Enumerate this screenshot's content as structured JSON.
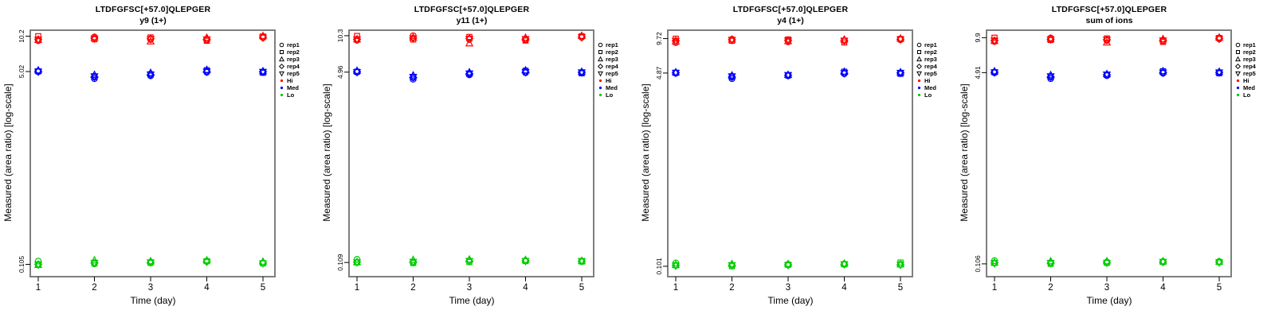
{
  "figure": {
    "background": "#FFFFFF",
    "frame_color": "#7F7F7F",
    "tick_color": "#000000",
    "text_color": "#000000"
  },
  "legend": {
    "reps": [
      {
        "label": "rep1",
        "marker": "circle"
      },
      {
        "label": "rep2",
        "marker": "square"
      },
      {
        "label": "rep3",
        "marker": "triangle-up"
      },
      {
        "label": "rep4",
        "marker": "diamond"
      },
      {
        "label": "rep5",
        "marker": "triangle-down"
      }
    ],
    "levels": [
      {
        "label": "Hi",
        "color": "#FF0000"
      },
      {
        "label": "Med",
        "color": "#0000FF"
      },
      {
        "label": "Lo",
        "color": "#00CD00"
      }
    ]
  },
  "chart_data": [
    {
      "type": "scatter",
      "title": "LTDFGFSC[+57.0]QLEPGER",
      "subtitle": "y9 (1+)",
      "xlabel": "Time (day)",
      "ylabel": "Measured (area ratio) [log-scale]",
      "x_days": [
        1,
        2,
        3,
        4,
        5
      ],
      "y_scale": "log",
      "ylim": [
        0.082,
        11.5
      ],
      "yticks": [
        "10.2",
        "5.02",
        "0.105"
      ],
      "series": [
        {
          "name": "Hi",
          "color": "#FF0000",
          "values_by_rep": [
            [
              9.3,
              10.05,
              9.55,
              9.45,
              9.9
            ],
            [
              10.2,
              9.6,
              9.95,
              9.3,
              10.15
            ],
            [
              9.5,
              9.9,
              9.2,
              9.9,
              10.25
            ],
            [
              9.55,
              9.8,
              9.7,
              9.6,
              10.0
            ],
            [
              9.5,
              9.7,
              9.6,
              9.55,
              9.9
            ]
          ]
        },
        {
          "name": "Med",
          "color": "#0000FF",
          "values_by_rep": [
            [
              5.0,
              4.35,
              4.6,
              4.95,
              4.95
            ],
            [
              5.05,
              4.5,
              4.75,
              5.15,
              4.9
            ],
            [
              5.15,
              4.7,
              4.9,
              5.2,
              5.05
            ],
            [
              5.05,
              4.5,
              4.7,
              5.0,
              5.0
            ],
            [
              5.0,
              4.55,
              4.72,
              5.0,
              4.98
            ]
          ]
        },
        {
          "name": "Lo",
          "color": "#00CD00",
          "values_by_rep": [
            [
              0.112,
              0.106,
              0.11,
              0.111,
              0.108
            ],
            [
              0.105,
              0.107,
              0.108,
              0.112,
              0.107
            ],
            [
              0.104,
              0.114,
              0.112,
              0.114,
              0.111
            ],
            [
              0.105,
              0.108,
              0.109,
              0.111,
              0.108
            ],
            [
              0.104,
              0.108,
              0.109,
              0.11,
              0.107
            ]
          ]
        }
      ]
    },
    {
      "type": "scatter",
      "title": "LTDFGFSC[+57.0]QLEPGER",
      "subtitle": "y11 (1+)",
      "xlabel": "Time (day)",
      "ylabel": "Measured (area ratio) [log-scale]",
      "x_days": [
        1,
        2,
        3,
        4,
        5
      ],
      "y_scale": "log",
      "ylim": [
        0.082,
        11.5
      ],
      "yticks": [
        "10.3",
        "4.96",
        "0.109"
      ],
      "series": [
        {
          "name": "Hi",
          "color": "#FF0000",
          "values_by_rep": [
            [
              9.4,
              10.3,
              9.55,
              9.5,
              9.95
            ],
            [
              10.25,
              9.55,
              10.05,
              9.35,
              10.2
            ],
            [
              9.6,
              9.95,
              8.85,
              9.9,
              10.3
            ],
            [
              9.6,
              9.85,
              9.75,
              9.65,
              10.05
            ],
            [
              9.55,
              9.75,
              9.65,
              9.6,
              9.95
            ]
          ]
        },
        {
          "name": "Med",
          "color": "#0000FF",
          "values_by_rep": [
            [
              4.95,
              4.3,
              4.7,
              4.9,
              4.9
            ],
            [
              5.0,
              4.45,
              4.78,
              5.1,
              4.85
            ],
            [
              5.1,
              4.65,
              4.95,
              5.15,
              5.0
            ],
            [
              5.0,
              4.45,
              4.8,
              4.95,
              4.95
            ],
            [
              4.95,
              4.5,
              4.82,
              4.95,
              4.93
            ]
          ]
        },
        {
          "name": "Lo",
          "color": "#00CD00",
          "values_by_rep": [
            [
              0.116,
              0.108,
              0.113,
              0.113,
              0.112
            ],
            [
              0.109,
              0.108,
              0.11,
              0.112,
              0.111
            ],
            [
              0.11,
              0.115,
              0.116,
              0.115,
              0.113
            ],
            [
              0.11,
              0.11,
              0.112,
              0.113,
              0.112
            ],
            [
              0.109,
              0.11,
              0.112,
              0.112,
              0.112
            ]
          ]
        }
      ]
    },
    {
      "type": "scatter",
      "title": "LTDFGFSC[+57.0]QLEPGER",
      "subtitle": "y4 (1+)",
      "xlabel": "Time (day)",
      "ylabel": "Measured (area ratio) [log-scale]",
      "x_days": [
        1,
        2,
        3,
        4,
        5
      ],
      "y_scale": "log",
      "ylim": [
        0.082,
        11.5
      ],
      "yticks": [
        "9.72",
        "4.87",
        "0.101"
      ],
      "series": [
        {
          "name": "Hi",
          "color": "#FF0000",
          "values_by_rep": [
            [
              8.95,
              9.6,
              9.1,
              9.3,
              9.5
            ],
            [
              9.7,
              9.3,
              9.55,
              9.0,
              9.65
            ],
            [
              9.2,
              9.55,
              9.25,
              9.55,
              9.75
            ],
            [
              9.3,
              9.5,
              9.4,
              9.35,
              9.6
            ],
            [
              9.25,
              9.45,
              9.35,
              9.3,
              9.55
            ]
          ]
        },
        {
          "name": "Med",
          "color": "#0000FF",
          "values_by_rep": [
            [
              4.85,
              4.35,
              4.6,
              4.8,
              4.85
            ],
            [
              4.9,
              4.5,
              4.65,
              5.0,
              4.8
            ],
            [
              4.95,
              4.65,
              4.7,
              5.0,
              4.95
            ],
            [
              4.9,
              4.5,
              4.65,
              4.85,
              4.9
            ],
            [
              4.88,
              4.55,
              4.67,
              4.85,
              4.88
            ]
          ]
        },
        {
          "name": "Lo",
          "color": "#00CD00",
          "values_by_rep": [
            [
              0.108,
              0.103,
              0.105,
              0.106,
              0.105
            ],
            [
              0.103,
              0.101,
              0.104,
              0.105,
              0.109
            ],
            [
              0.104,
              0.106,
              0.106,
              0.107,
              0.105
            ],
            [
              0.103,
              0.103,
              0.104,
              0.105,
              0.104
            ],
            [
              0.102,
              0.103,
              0.103,
              0.105,
              0.104
            ]
          ]
        }
      ]
    },
    {
      "type": "scatter",
      "title": "LTDFGFSC[+57.0]QLEPGER",
      "subtitle": "sum of ions",
      "xlabel": "Time (day)",
      "ylabel": "Measured (area ratio) [log-scale]",
      "x_days": [
        1,
        2,
        3,
        4,
        5
      ],
      "y_scale": "log",
      "ylim": [
        0.082,
        11.5
      ],
      "yticks": [
        "9.9",
        "4.91",
        "0.106"
      ],
      "series": [
        {
          "name": "Hi",
          "color": "#FF0000",
          "values_by_rep": [
            [
              9.15,
              9.85,
              9.35,
              9.2,
              9.65
            ],
            [
              9.9,
              9.45,
              9.75,
              9.1,
              9.85
            ],
            [
              9.3,
              9.7,
              9.0,
              9.65,
              9.95
            ],
            [
              9.35,
              9.6,
              9.5,
              9.4,
              9.75
            ],
            [
              9.3,
              9.55,
              9.45,
              9.35,
              9.65
            ]
          ]
        },
        {
          "name": "Med",
          "color": "#0000FF",
          "values_by_rep": [
            [
              4.9,
              4.35,
              4.62,
              4.85,
              4.9
            ],
            [
              4.95,
              4.5,
              4.7,
              5.05,
              4.85
            ],
            [
              5.05,
              4.68,
              4.78,
              5.05,
              5.0
            ],
            [
              4.95,
              4.5,
              4.7,
              4.9,
              4.95
            ],
            [
              4.92,
              4.55,
              4.72,
              4.9,
              4.92
            ]
          ]
        },
        {
          "name": "Lo",
          "color": "#00CD00",
          "values_by_rep": [
            [
              0.113,
              0.108,
              0.11,
              0.111,
              0.111
            ],
            [
              0.108,
              0.106,
              0.108,
              0.11,
              0.11
            ],
            [
              0.109,
              0.112,
              0.112,
              0.112,
              0.111
            ],
            [
              0.108,
              0.108,
              0.109,
              0.11,
              0.11
            ],
            [
              0.107,
              0.108,
              0.108,
              0.11,
              0.109
            ]
          ]
        }
      ]
    }
  ]
}
